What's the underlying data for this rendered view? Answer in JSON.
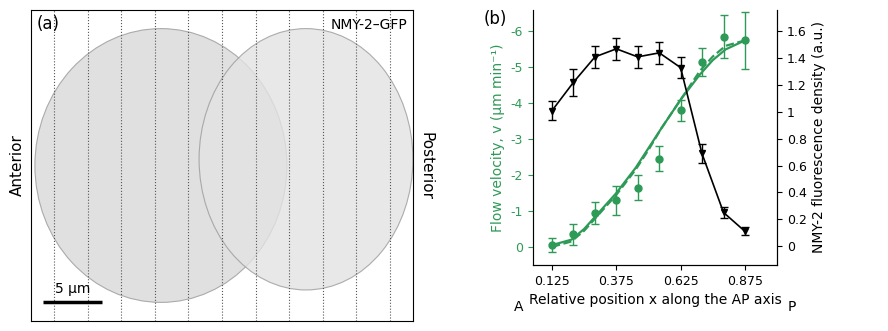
{
  "chart_data": [
    {
      "type": "image",
      "title": "(a)",
      "annotations": [
        "NMY-2–GFP",
        "Anterior",
        "Posterior"
      ],
      "scale_bar": {
        "value": 5,
        "label": "5 μm"
      },
      "xlim": [
        0,
        32
      ],
      "ylim": [
        0,
        25
      ],
      "tick_labels": false
    },
    {
      "type": "line",
      "title": "(b)",
      "xlabel": "Relative position x along the AP axis",
      "ylabel": "Flow velocity, v (μm min⁻¹)",
      "y2label": "NMY-2 fluorescence density (a.u.)",
      "annotations": [
        "A",
        "P"
      ],
      "xlim": [
        0.05,
        1.0
      ],
      "xticks": [
        0.125,
        0.375,
        0.625,
        0.875
      ],
      "ylim": [
        0.5,
        -6.6
      ],
      "yticks": [
        0,
        -1,
        -2,
        -3,
        -4,
        -5,
        -6
      ],
      "y2lim": [
        -0.14,
        1.76
      ],
      "y2ticks": [
        0,
        0.2,
        0.4,
        0.6,
        0.8,
        1,
        1.2,
        1.4,
        1.6
      ],
      "series": [
        {
          "type": "scatter",
          "color": "#2e9a57",
          "marker": "circle",
          "line_style": "none",
          "x": [
            0.125,
            0.208,
            0.292,
            0.375,
            0.458,
            0.542,
            0.625,
            0.708,
            0.792,
            0.875
          ],
          "values": [
            -0.05,
            -0.35,
            -0.95,
            -1.3,
            -1.65,
            -2.45,
            -3.8,
            -5.15,
            -5.85,
            -5.75
          ],
          "errors": [
            0.2,
            0.3,
            0.3,
            0.4,
            0.35,
            0.35,
            0.3,
            0.4,
            0.6,
            0.8
          ]
        },
        {
          "type": "line",
          "color": "#2e9a57",
          "marker": "none",
          "line_style": "solid",
          "x": [
            0.125,
            0.2,
            0.25,
            0.3,
            0.375,
            0.45,
            0.5,
            0.55,
            0.625,
            0.7,
            0.75,
            0.8,
            0.875
          ],
          "values": [
            -0.05,
            -0.2,
            -0.5,
            -0.9,
            -1.5,
            -2.2,
            -2.75,
            -3.3,
            -4.1,
            -4.8,
            -5.2,
            -5.5,
            -5.75
          ]
        },
        {
          "type": "line",
          "color": "#2e9a57",
          "marker": "none",
          "line_style": "dashed",
          "x": [
            0.125,
            0.2,
            0.25,
            0.3,
            0.375,
            0.45,
            0.5,
            0.55,
            0.625,
            0.7,
            0.75,
            0.8,
            0.875
          ],
          "values": [
            0.0,
            -0.15,
            -0.45,
            -0.85,
            -1.45,
            -2.15,
            -2.7,
            -3.3,
            -4.1,
            -4.9,
            -5.3,
            -5.6,
            -5.75
          ]
        },
        {
          "type": "line",
          "color": "#000000",
          "marker": "triangle_down",
          "line_style": "solid",
          "axis": "y2",
          "x": [
            0.125,
            0.208,
            0.292,
            0.375,
            0.458,
            0.542,
            0.625,
            0.708,
            0.792,
            0.875
          ],
          "values": [
            1.01,
            1.22,
            1.41,
            1.47,
            1.41,
            1.44,
            1.33,
            0.69,
            0.25,
            0.11
          ],
          "errors": [
            0.07,
            0.1,
            0.08,
            0.08,
            0.08,
            0.08,
            0.08,
            0.07,
            0.04,
            0.03
          ]
        }
      ]
    }
  ]
}
